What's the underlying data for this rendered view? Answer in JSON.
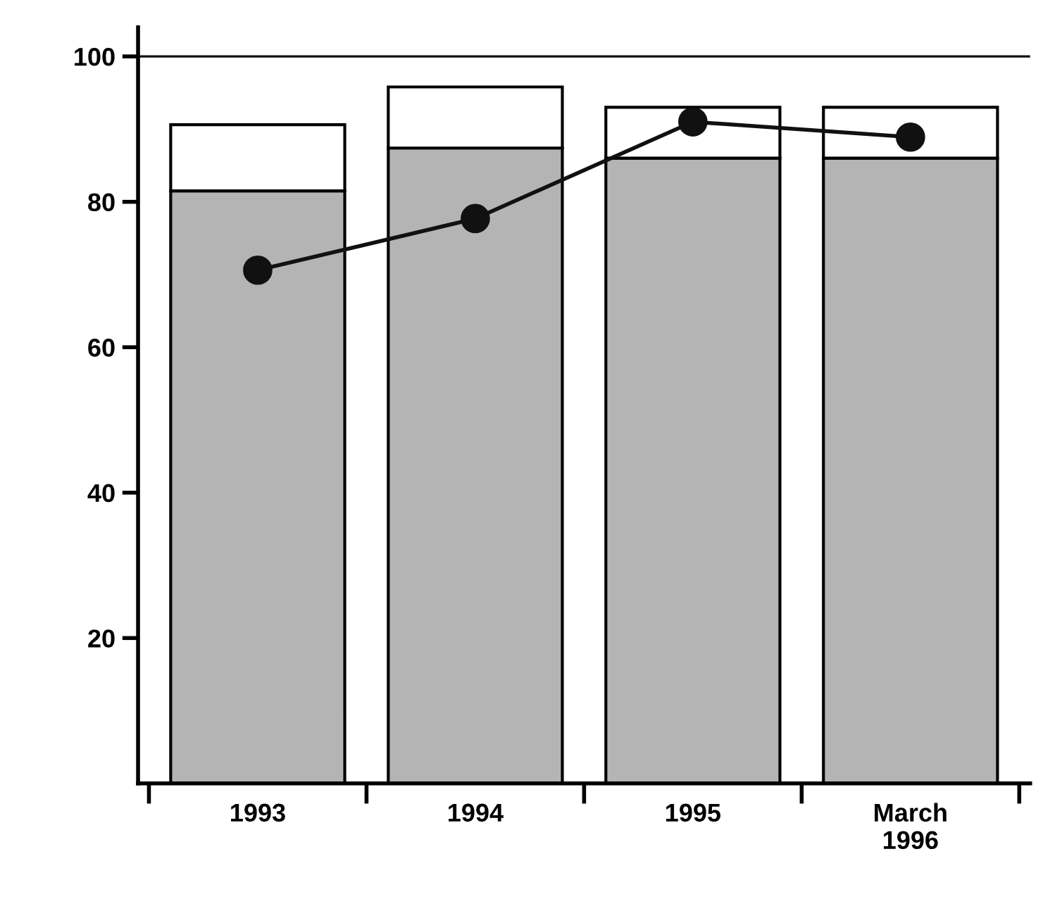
{
  "chart_data": {
    "type": "bar",
    "stacked": true,
    "categories": [
      "1993",
      "1994",
      "1995",
      "March\n1996"
    ],
    "series": [
      {
        "color": "#b4b4b4",
        "values": [
          81.5,
          87.4,
          86,
          86
        ]
      },
      {
        "color": "#ffffff",
        "values": [
          9.1,
          8.4,
          7,
          7
        ]
      },
      {
        "type": "line",
        "color": "#111111",
        "values": [
          70.6,
          77.7,
          91,
          88.9
        ]
      }
    ],
    "ylim": [
      0,
      104
    ],
    "yticks": [
      20,
      40,
      60,
      80,
      100
    ],
    "ref_lines": [
      {
        "axis": "y",
        "value": 100,
        "color": "#111111"
      }
    ],
    "marker": "circle",
    "line_style": "solid",
    "grid": false,
    "legend": false
  }
}
